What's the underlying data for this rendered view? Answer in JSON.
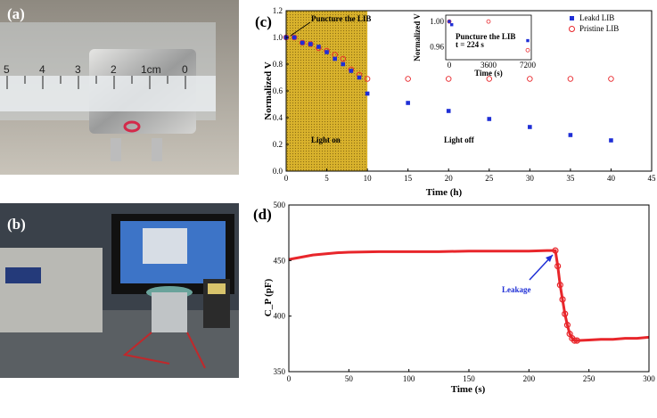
{
  "panels": {
    "a": "(a)",
    "b": "(b)",
    "c": "(c)",
    "d": "(d)"
  },
  "photo_a": {
    "ruler_numbers": [
      "5",
      "4",
      "3",
      "2",
      "1cm",
      "0"
    ]
  },
  "colors": {
    "leaked": "#1f2fd6",
    "pristine": "#e8262b",
    "shade": "#d9b22c",
    "curve": "#e8262b",
    "arrow": "#1f2fd6"
  },
  "chart_data": [
    {
      "type": "scatter",
      "title": "",
      "xlabel": "Time (h)",
      "ylabel": "Normalized V",
      "xlim": [
        0,
        45
      ],
      "ylim": [
        0.0,
        1.2
      ],
      "xticks": [
        "0",
        "5",
        "10",
        "15",
        "20",
        "25",
        "30",
        "35",
        "40",
        "45"
      ],
      "yticks": [
        "0.0",
        "0.2",
        "0.4",
        "0.6",
        "0.8",
        "1.0",
        "1.2"
      ],
      "legend": "top-right",
      "shaded_region": {
        "x": [
          0,
          10
        ],
        "label": "Light on"
      },
      "annotations": [
        "Puncture the LIB",
        "Light on",
        "Light off"
      ],
      "series": [
        {
          "name": "Leakd LIB",
          "marker": "filled-square",
          "x": [
            0,
            1,
            2,
            3,
            4,
            5,
            6,
            7,
            8,
            9,
            10,
            15,
            20,
            25,
            30,
            35,
            40
          ],
          "y": [
            1.0,
            1.0,
            0.96,
            0.95,
            0.93,
            0.89,
            0.84,
            0.8,
            0.75,
            0.7,
            0.58,
            0.51,
            0.45,
            0.39,
            0.33,
            0.27,
            0.23
          ]
        },
        {
          "name": "Pristine LIB",
          "marker": "open-circle",
          "x": [
            0,
            1,
            2,
            3,
            4,
            5,
            6,
            7,
            8,
            9,
            10,
            15,
            20,
            25,
            30,
            35,
            40
          ],
          "y": [
            1.0,
            1.0,
            0.96,
            0.95,
            0.92,
            0.9,
            0.87,
            0.84,
            0.76,
            0.72,
            0.69,
            0.69,
            0.69,
            0.69,
            0.69,
            0.69,
            0.69
          ]
        }
      ],
      "inset": {
        "xlabel": "Time (s)",
        "ylabel": "Normalized V",
        "xlim": [
          0,
          7200
        ],
        "ylim": [
          0.94,
          1.01
        ],
        "xticks": [
          "0",
          "3600",
          "7200"
        ],
        "yticks": [
          "0.96",
          "1.00"
        ],
        "annotation": [
          "Puncture the LIB",
          "t = 224 s"
        ],
        "series": [
          {
            "name": "Leakd LIB",
            "marker": "filled-square",
            "x": [
              0,
              224,
              7200
            ],
            "y": [
              1.0,
              0.995,
              0.97
            ]
          },
          {
            "name": "Pristine LIB",
            "marker": "open-circle",
            "x": [
              0,
              3600,
              7200
            ],
            "y": [
              1.0,
              1.0,
              0.955
            ]
          }
        ]
      }
    },
    {
      "type": "line",
      "title": "",
      "xlabel": "Time (s)",
      "ylabel": "C_P (pF)",
      "xlim": [
        0,
        300
      ],
      "ylim": [
        350,
        500
      ],
      "xticks": [
        "0",
        "50",
        "100",
        "150",
        "200",
        "250",
        "300"
      ],
      "yticks": [
        "350",
        "400",
        "450",
        "500"
      ],
      "annotation": "Leakage",
      "series": [
        {
          "name": "",
          "marker": "open-circle",
          "x": [
            0,
            10,
            20,
            30,
            40,
            50,
            75,
            100,
            125,
            150,
            175,
            200,
            215,
            222,
            224,
            226,
            228,
            230,
            232,
            234,
            236,
            238,
            240,
            250,
            260,
            270,
            280,
            290,
            300
          ],
          "y": [
            451,
            453,
            455,
            456,
            457,
            457.5,
            458,
            458,
            458,
            458.5,
            458.5,
            458.5,
            459,
            459,
            445,
            428,
            415,
            402,
            392,
            384,
            380,
            378,
            378,
            378.5,
            379,
            379,
            380,
            380,
            381
          ]
        }
      ]
    }
  ]
}
